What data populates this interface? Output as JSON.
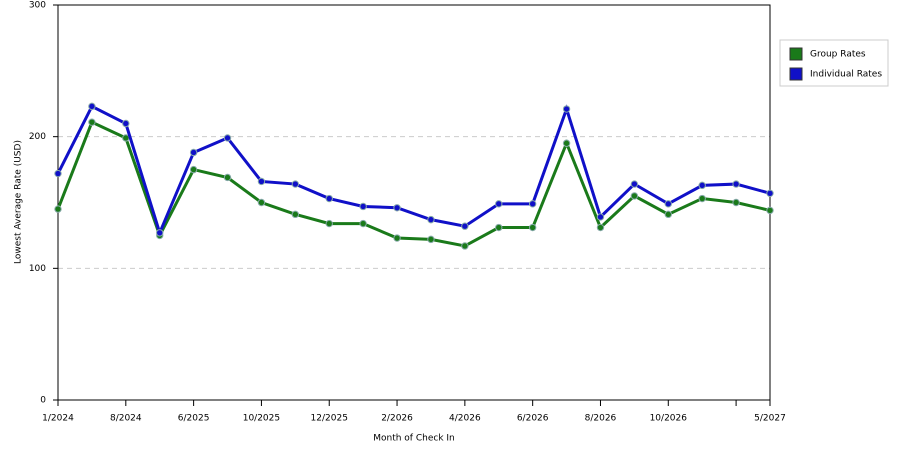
{
  "chart_data": {
    "type": "line",
    "x_label": "Month of Check In",
    "y_label": "Lowest Average Rate (USD)",
    "categories": [
      "1/2024",
      null,
      "8/2024",
      null,
      "6/2025",
      null,
      "10/2025",
      null,
      "12/2025",
      null,
      "2/2026",
      null,
      "4/2026",
      null,
      "6/2026",
      null,
      "8/2026",
      null,
      "10/2026",
      null,
      null,
      "5/2027"
    ],
    "series": [
      {
        "name": "Group Rates",
        "color": "#1a7a1a",
        "values": [
          145,
          211,
          199,
          125,
          175,
          169,
          150,
          141,
          134,
          134,
          123,
          122,
          117,
          131,
          131,
          195,
          131,
          155,
          141,
          153,
          150,
          144
        ]
      },
      {
        "name": "Individual Rates",
        "color": "#1010c8",
        "values": [
          172,
          223,
          210,
          127,
          188,
          199,
          166,
          164,
          153,
          147,
          146,
          137,
          132,
          149,
          149,
          221,
          139,
          164,
          149,
          163,
          164,
          157
        ]
      }
    ],
    "ylim": [
      0,
      300
    ],
    "yticks": [
      0,
      100,
      200,
      300
    ],
    "grid": true,
    "legend": "right"
  }
}
